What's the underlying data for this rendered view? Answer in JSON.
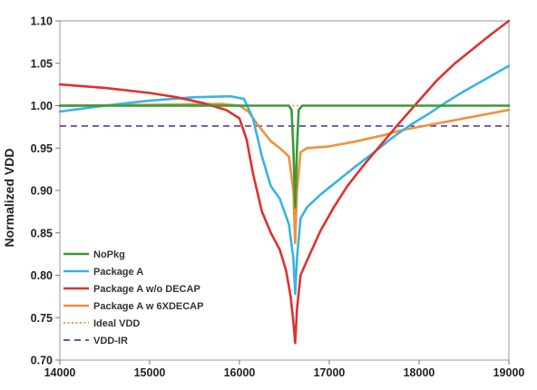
{
  "chart_data": {
    "type": "line",
    "title": "",
    "xlabel": "",
    "ylabel": "Normalized VDD",
    "xlim": [
      14000,
      19000
    ],
    "ylim": [
      0.7,
      1.1
    ],
    "x_ticks": [
      14000,
      15000,
      16000,
      17000,
      18000,
      19000
    ],
    "y_ticks": [
      0.7,
      0.75,
      0.8,
      0.85,
      0.9,
      0.95,
      1.0,
      1.05,
      1.1
    ],
    "x_tick_labels": [
      "14000",
      "15000",
      "16000",
      "17000",
      "18000",
      "19000"
    ],
    "y_tick_labels": [
      "0.70",
      "0.75",
      "0.80",
      "0.85",
      "0.90",
      "0.95",
      "1.00",
      "1.05",
      "1.10"
    ],
    "grid": false,
    "legend_position": "bottom-left",
    "series": [
      {
        "name": "NoPkg",
        "color": "#3a9a3a",
        "dash": "solid",
        "points": [
          [
            14000,
            1.0
          ],
          [
            16000,
            1.0
          ],
          [
            16550,
            1.0
          ],
          [
            16580,
            0.995
          ],
          [
            16600,
            0.95
          ],
          [
            16620,
            0.88
          ],
          [
            16640,
            0.95
          ],
          [
            16660,
            0.995
          ],
          [
            16700,
            1.0
          ],
          [
            19000,
            1.0
          ]
        ]
      },
      {
        "name": "Package A",
        "color": "#39b3e3",
        "dash": "solid",
        "points": [
          [
            14000,
            0.993
          ],
          [
            14500,
            1.0
          ],
          [
            15000,
            1.006
          ],
          [
            15500,
            1.01
          ],
          [
            15900,
            1.011
          ],
          [
            16050,
            1.008
          ],
          [
            16150,
            0.985
          ],
          [
            16250,
            0.94
          ],
          [
            16350,
            0.905
          ],
          [
            16450,
            0.89
          ],
          [
            16550,
            0.86
          ],
          [
            16600,
            0.82
          ],
          [
            16620,
            0.778
          ],
          [
            16640,
            0.82
          ],
          [
            16680,
            0.867
          ],
          [
            16750,
            0.88
          ],
          [
            16900,
            0.895
          ],
          [
            17100,
            0.912
          ],
          [
            17300,
            0.929
          ],
          [
            17500,
            0.945
          ],
          [
            17700,
            0.962
          ],
          [
            17900,
            0.977
          ],
          [
            18100,
            0.99
          ],
          [
            18300,
            1.004
          ],
          [
            18500,
            1.017
          ],
          [
            18750,
            1.032
          ],
          [
            19000,
            1.047
          ]
        ]
      },
      {
        "name": "Package A w/o DECAP",
        "color": "#e03030",
        "dash": "solid",
        "points": [
          [
            14000,
            1.025
          ],
          [
            14500,
            1.021
          ],
          [
            15000,
            1.015
          ],
          [
            15300,
            1.01
          ],
          [
            15600,
            1.003
          ],
          [
            15850,
            0.995
          ],
          [
            16000,
            0.985
          ],
          [
            16080,
            0.96
          ],
          [
            16150,
            0.92
          ],
          [
            16250,
            0.875
          ],
          [
            16350,
            0.85
          ],
          [
            16450,
            0.83
          ],
          [
            16520,
            0.805
          ],
          [
            16570,
            0.775
          ],
          [
            16600,
            0.745
          ],
          [
            16620,
            0.72
          ],
          [
            16640,
            0.76
          ],
          [
            16680,
            0.8
          ],
          [
            16750,
            0.817
          ],
          [
            16900,
            0.852
          ],
          [
            17050,
            0.88
          ],
          [
            17200,
            0.905
          ],
          [
            17400,
            0.932
          ],
          [
            17600,
            0.957
          ],
          [
            17800,
            0.982
          ],
          [
            18000,
            1.006
          ],
          [
            18200,
            1.03
          ],
          [
            18400,
            1.05
          ],
          [
            18600,
            1.067
          ],
          [
            18800,
            1.084
          ],
          [
            19000,
            1.1
          ]
        ]
      },
      {
        "name": "Package A w 6XDECAP",
        "color": "#f0913a",
        "dash": "solid",
        "points": [
          [
            14000,
            1.0
          ],
          [
            15000,
            1.001
          ],
          [
            15800,
            1.002
          ],
          [
            16000,
            1.0
          ],
          [
            16100,
            0.993
          ],
          [
            16200,
            0.978
          ],
          [
            16350,
            0.958
          ],
          [
            16450,
            0.95
          ],
          [
            16550,
            0.94
          ],
          [
            16600,
            0.9
          ],
          [
            16620,
            0.838
          ],
          [
            16640,
            0.9
          ],
          [
            16680,
            0.945
          ],
          [
            16750,
            0.95
          ],
          [
            17000,
            0.952
          ],
          [
            17300,
            0.958
          ],
          [
            17600,
            0.965
          ],
          [
            17800,
            0.971
          ],
          [
            18000,
            0.975
          ],
          [
            18300,
            0.981
          ],
          [
            18600,
            0.987
          ],
          [
            19000,
            0.995
          ]
        ]
      },
      {
        "name": "Ideal VDD",
        "color": "#f0913a",
        "dash": "dotted",
        "points": [
          [
            14000,
            1.0
          ],
          [
            19000,
            1.0
          ]
        ]
      },
      {
        "name": "VDD-IR",
        "color": "#5a3aa8",
        "dash": "dashed",
        "points": [
          [
            14000,
            0.976
          ],
          [
            19000,
            0.976
          ]
        ]
      }
    ]
  }
}
